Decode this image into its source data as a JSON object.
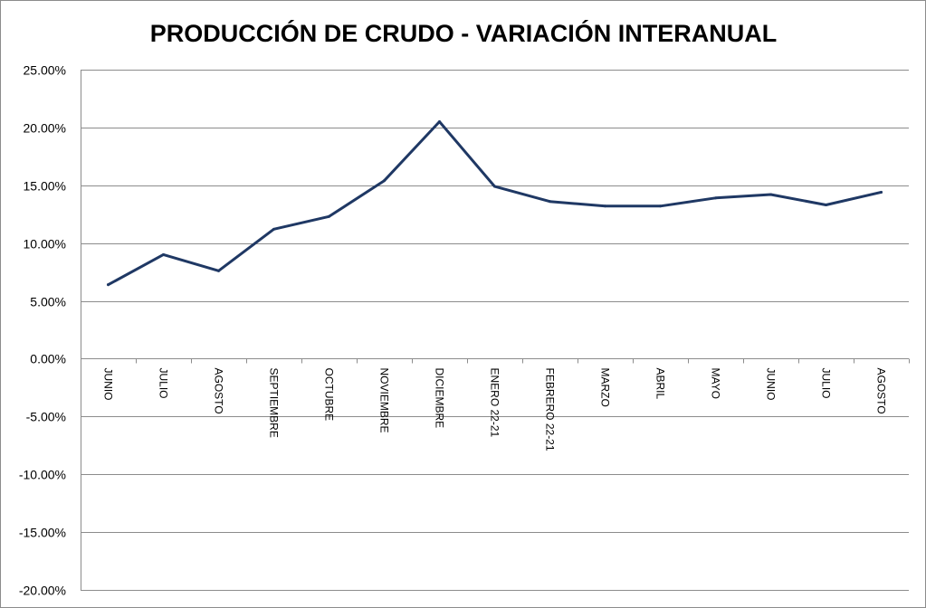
{
  "chart_data": {
    "type": "line",
    "title": "PRODUCCIÓN DE CRUDO - VARIACIÓN INTERANUAL",
    "xlabel": "",
    "ylabel": "",
    "categories": [
      "JUNIO",
      "JULIO",
      "AGOSTO",
      "SEPTIEMBRE",
      "OCTUBRE",
      "NOVIEMBRE",
      "DICIEMBRE",
      "ENERO 22-21",
      "FEBRERO 22-21",
      "MARZO",
      "ABRIL",
      "MAYO",
      "JUNIO",
      "JULIO",
      "AGOSTO"
    ],
    "series": [
      {
        "values": [
          6.4,
          9.0,
          7.6,
          11.2,
          12.3,
          15.4,
          20.5,
          14.9,
          13.6,
          13.2,
          13.2,
          13.9,
          14.2,
          13.3,
          14.4
        ],
        "color": "#1f3864"
      }
    ],
    "ylim": [
      -20,
      25
    ],
    "yticks": [
      25,
      20,
      15,
      10,
      5,
      0,
      -5,
      -10,
      -15,
      -20
    ],
    "ytick_labels": [
      "25.00%",
      "20.00%",
      "15.00%",
      "10.00%",
      "5.00%",
      "0.00%",
      "-5.00%",
      "-10.00%",
      "-15.00%",
      "-20.00%"
    ],
    "grid": true,
    "legend": "none"
  }
}
